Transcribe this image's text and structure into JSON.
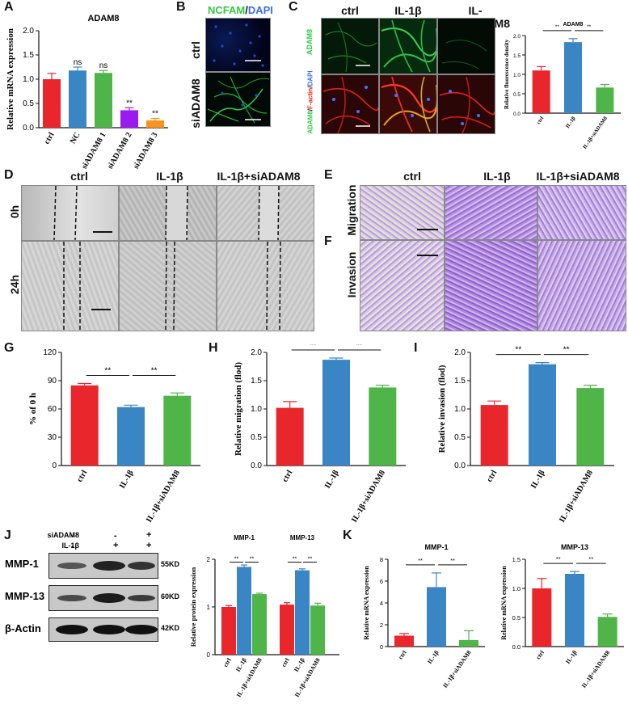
{
  "panels": {
    "A": "A",
    "B": "B",
    "C": "C",
    "D": "D",
    "E": "E",
    "F": "F",
    "G": "G",
    "H": "H",
    "I": "I",
    "J": "J",
    "K": "K"
  },
  "panelB": {
    "title_ncfam": "NCFAM",
    "title_sep": "/",
    "title_dapi": "DAPI",
    "row_labels": [
      "ctrl",
      "siADAM8"
    ]
  },
  "panelC": {
    "col_headers": [
      "ctrl",
      "IL-1β",
      "IL-1β+siADAM8"
    ],
    "row1_label": "ADAM8",
    "row2_label_parts": [
      "ADAM8",
      "/",
      "F-actin",
      "/",
      "DAPI"
    ]
  },
  "panelD": {
    "col_headers": [
      "ctrl",
      "IL-1β",
      "IL-1β+siADAM8"
    ],
    "row_labels": [
      "0h",
      "24h"
    ]
  },
  "panelE": {
    "col_headers": [
      "ctrl",
      "IL-1β",
      "IL-1β+siADAM8"
    ],
    "row_labels": [
      "Migration",
      "Invasion"
    ]
  },
  "panelJ": {
    "treat_rows": [
      {
        "label": "siADAM8",
        "signs": [
          "-",
          "-",
          "+"
        ]
      },
      {
        "label": "IL-1β",
        "signs": [
          "-",
          "+",
          "+"
        ]
      }
    ],
    "bands": [
      {
        "label": "MMP-1",
        "kd": "55KD"
      },
      {
        "label": "MMP-13",
        "kd": "60KD"
      },
      {
        "label": "β-Actin",
        "kd": "42KD"
      }
    ]
  },
  "colors": {
    "red": "#e8262c",
    "blue": "#3a85c4",
    "green": "#4fb548",
    "purple": "#9a1bf0",
    "orange": "#f7931e"
  },
  "chart_data": [
    {
      "id": "A",
      "type": "bar",
      "title": "ADAM8",
      "ylabel": "Relative mRNA expression",
      "categories": [
        "ctrl",
        "NC",
        "siADAM8 1",
        "siADAM8 2",
        "siADAM8 3"
      ],
      "values": [
        1.0,
        1.18,
        1.13,
        0.36,
        0.15
      ],
      "errors": [
        0.12,
        0.07,
        0.05,
        0.05,
        0.04
      ],
      "annotations": [
        "",
        "ns",
        "ns",
        "**",
        "**"
      ],
      "colors": [
        "#e8262c",
        "#3a85c4",
        "#4fb548",
        "#9a1bf0",
        "#f7931e"
      ],
      "yticks": [
        "0.0",
        "0.5",
        "1.0",
        "1.5",
        "2.0"
      ],
      "ylim": [
        0,
        2.0
      ]
    },
    {
      "id": "C",
      "type": "bar",
      "title": "ADAM8",
      "ylabel": "Relative fluorescence density",
      "categories": [
        "ctrl",
        "IL-1β",
        "IL-1β+siADAM8"
      ],
      "values": [
        1.1,
        1.83,
        0.66
      ],
      "errors": [
        0.1,
        0.09,
        0.08
      ],
      "colors": [
        "#e8262c",
        "#3a85c4",
        "#4fb548"
      ],
      "yticks": [
        "0.0",
        "0.5",
        "1.0",
        "1.5",
        "2.0"
      ],
      "ylim": [
        0,
        2.0
      ],
      "brackets": [
        "**",
        "**"
      ]
    },
    {
      "id": "G",
      "type": "bar",
      "ylabel": "% of 0 h",
      "categories": [
        "ctrl",
        "IL-1β",
        "IL-1β+siADAM8"
      ],
      "values": [
        85,
        62,
        74
      ],
      "errors": [
        2,
        2,
        3
      ],
      "colors": [
        "#e8262c",
        "#3a85c4",
        "#4fb548"
      ],
      "yticks": [
        "0",
        "30",
        "60",
        "90",
        "120"
      ],
      "ylim": [
        0,
        120
      ],
      "brackets": [
        "**",
        "**"
      ]
    },
    {
      "id": "H",
      "type": "bar",
      "ylabel": "Relative migration (flod)",
      "categories": [
        "ctrl",
        "IL-1β",
        "IL-1β+siADAM8"
      ],
      "values": [
        1.02,
        1.87,
        1.38
      ],
      "errors": [
        0.11,
        0.03,
        0.04
      ],
      "colors": [
        "#e8262c",
        "#3a85c4",
        "#4fb548"
      ],
      "yticks": [
        "0.0",
        "0.5",
        "1.0",
        "1.5",
        "2.0"
      ],
      "ylim": [
        0,
        2.0
      ],
      "brackets": [
        "**",
        "**"
      ]
    },
    {
      "id": "I",
      "type": "bar",
      "ylabel": "Relative invasion (flod)",
      "categories": [
        "ctrl",
        "IL-1β",
        "IL-1β+siADAM8"
      ],
      "values": [
        1.07,
        1.79,
        1.37
      ],
      "errors": [
        0.07,
        0.03,
        0.05
      ],
      "colors": [
        "#e8262c",
        "#3a85c4",
        "#4fb548"
      ],
      "yticks": [
        "0.0",
        "0.5",
        "1.0",
        "1.5",
        "2.0"
      ],
      "ylim": [
        0,
        2.0
      ],
      "brackets": [
        "**",
        "**"
      ]
    },
    {
      "id": "J",
      "type": "bar",
      "ylabel": "Relative protein expression",
      "group_labels": [
        "MMP-1",
        "MMP-13"
      ],
      "categories": [
        "ctrl",
        "IL-1β",
        "IL-1β+siADAM8"
      ],
      "series": [
        {
          "values": [
            1.0,
            1.84,
            1.27
          ],
          "errors": [
            0.03,
            0.04,
            0.02
          ]
        },
        {
          "values": [
            1.05,
            1.77,
            1.03
          ],
          "errors": [
            0.04,
            0.03,
            0.05
          ]
        }
      ],
      "colors": [
        "#e8262c",
        "#3a85c4",
        "#4fb548"
      ],
      "yticks": [
        "0",
        "1",
        "2"
      ],
      "ylim": [
        0,
        2
      ],
      "brackets": [
        "**",
        "**",
        "**",
        "**"
      ]
    },
    {
      "id": "K1",
      "type": "bar",
      "title": "MMP-1",
      "ylabel": "Relative mRNA expression",
      "categories": [
        "ctrl",
        "IL-1β",
        "IL-1β+siADAM8"
      ],
      "values": [
        1.0,
        5.45,
        0.6
      ],
      "errors": [
        0.2,
        1.3,
        0.85
      ],
      "colors": [
        "#e8262c",
        "#3a85c4",
        "#4fb548"
      ],
      "yticks": [
        "0",
        "2",
        "4",
        "6",
        "8"
      ],
      "ylim": [
        0,
        8
      ],
      "brackets": [
        "**",
        "**"
      ]
    },
    {
      "id": "K2",
      "type": "bar",
      "title": "MMP-13",
      "ylabel": "Relative mRNA expression",
      "categories": [
        "ctrl",
        "IL-1β",
        "IL-1β+siADAM8"
      ],
      "values": [
        1.0,
        1.25,
        0.51
      ],
      "errors": [
        0.17,
        0.04,
        0.05
      ],
      "colors": [
        "#e8262c",
        "#3a85c4",
        "#4fb548"
      ],
      "yticks": [
        "0.0",
        "0.5",
        "1.0",
        "1.5"
      ],
      "ylim": [
        0,
        1.5
      ],
      "brackets": [
        "**",
        "**"
      ]
    }
  ]
}
